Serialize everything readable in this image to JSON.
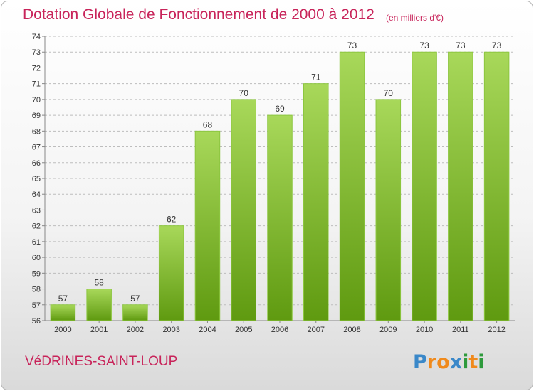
{
  "title": "Dotation Globale de Fonctionnement de 2000 à 2012",
  "subtitle": "(en milliers d'€)",
  "commune": "VéDRINES-SAINT-LOUP",
  "logo": {
    "letters": [
      "P",
      "r",
      "o",
      "x",
      "i",
      "t",
      "i"
    ],
    "colors": [
      "#3a88c9",
      "#f08a1c",
      "#f08a1c",
      "#3a88c9",
      "#2e9a3c",
      "#f08a1c",
      "#2e9a3c"
    ]
  },
  "colors": {
    "bar_top": "#a8d85a",
    "bar_bottom": "#5f9a10",
    "bar_edge": "#8cc63f",
    "title": "#c8245a",
    "grid": "#bdbdbd"
  },
  "chart_data": {
    "type": "bar",
    "title": "Dotation Globale de Fonctionnement de 2000 à 2012",
    "subtitle": "(en milliers d'€)",
    "categories": [
      "2000",
      "2001",
      "2002",
      "2003",
      "2004",
      "2005",
      "2006",
      "2007",
      "2008",
      "2009",
      "2010",
      "2011",
      "2012"
    ],
    "values": [
      57,
      58,
      57,
      62,
      68,
      70,
      69,
      71,
      73,
      70,
      73,
      73,
      73
    ],
    "ylim": [
      56,
      74
    ],
    "yticks": [
      56,
      57,
      58,
      59,
      60,
      61,
      62,
      63,
      64,
      65,
      66,
      67,
      68,
      69,
      70,
      71,
      72,
      73,
      74
    ],
    "grid": "horizontal dashed",
    "xlabel": "",
    "ylabel": ""
  }
}
